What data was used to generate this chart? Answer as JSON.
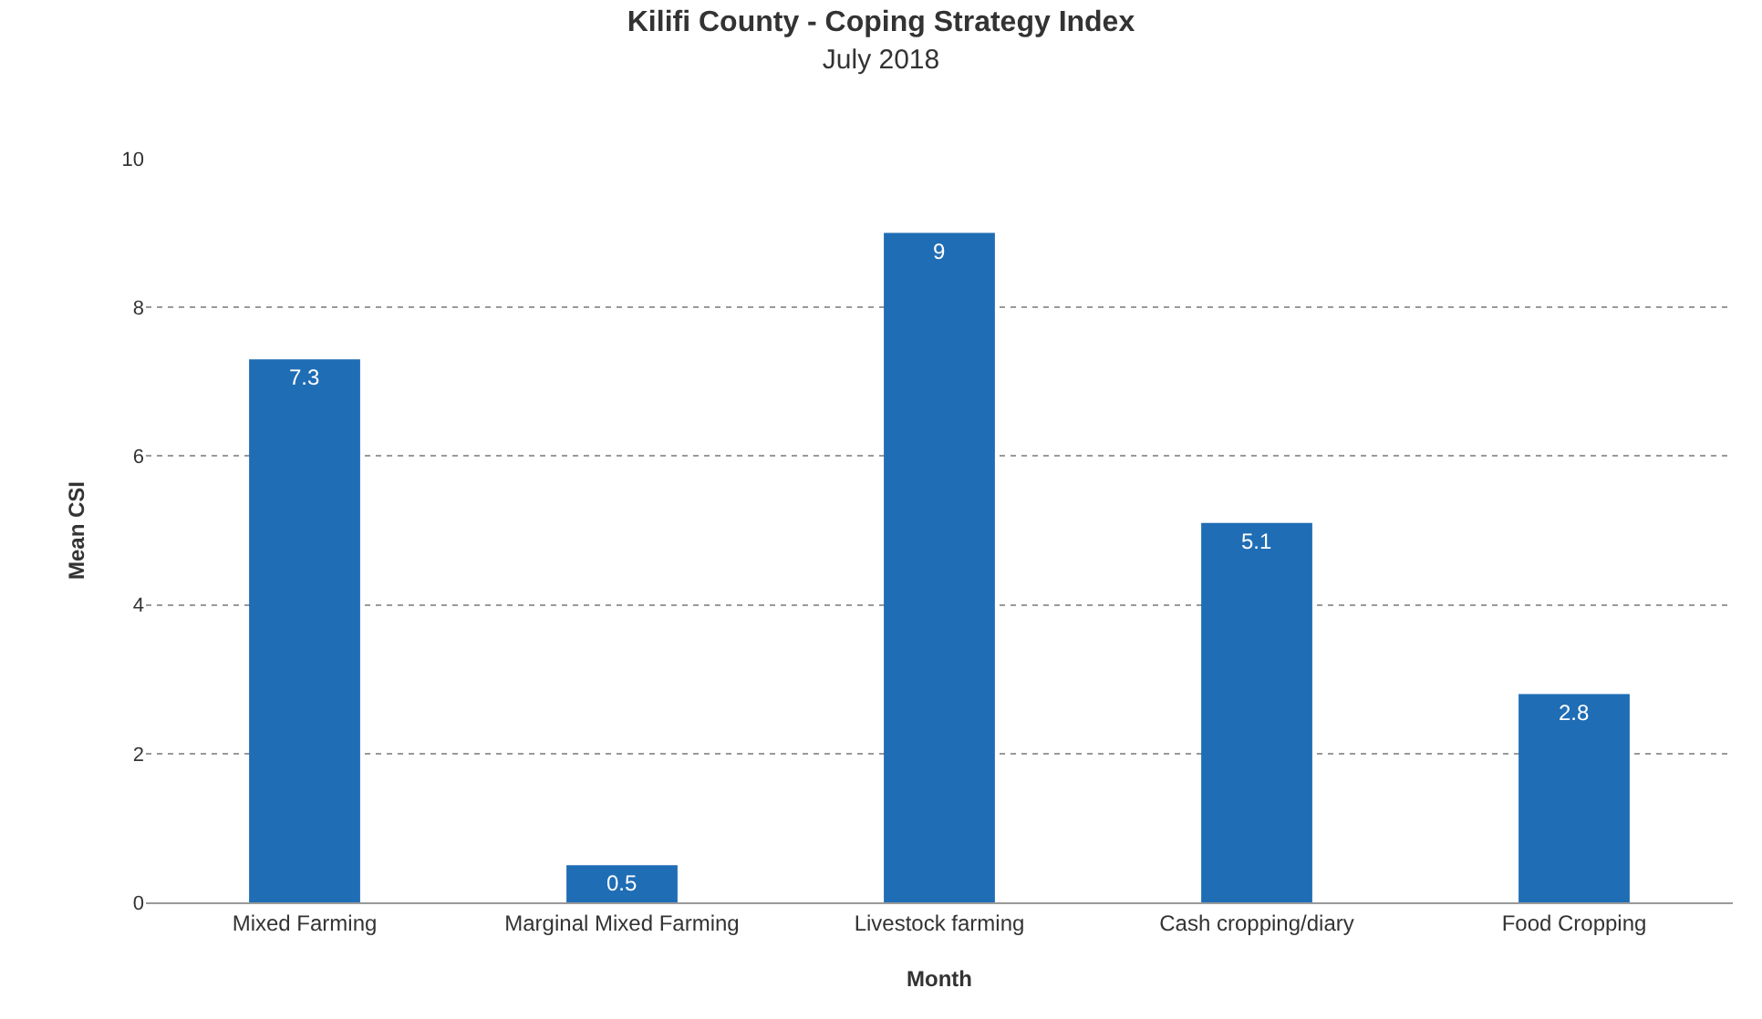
{
  "chart_data": {
    "type": "bar",
    "title": "Kilifi County - Coping Strategy Index",
    "subtitle": "July 2018",
    "xlabel": "Month",
    "ylabel": "Mean CSI",
    "categories": [
      "Mixed Farming",
      "Marginal Mixed Farming",
      "Livestock farming",
      "Cash cropping/diary",
      "Food Cropping"
    ],
    "values": [
      7.3,
      0.5,
      9,
      5.1,
      2.8
    ],
    "color": "#1f6db5",
    "ylim": [
      0,
      10
    ],
    "yticks": [
      0,
      2,
      4,
      6,
      8,
      10
    ],
    "grid": "y",
    "data_labels": true,
    "legend": false
  }
}
